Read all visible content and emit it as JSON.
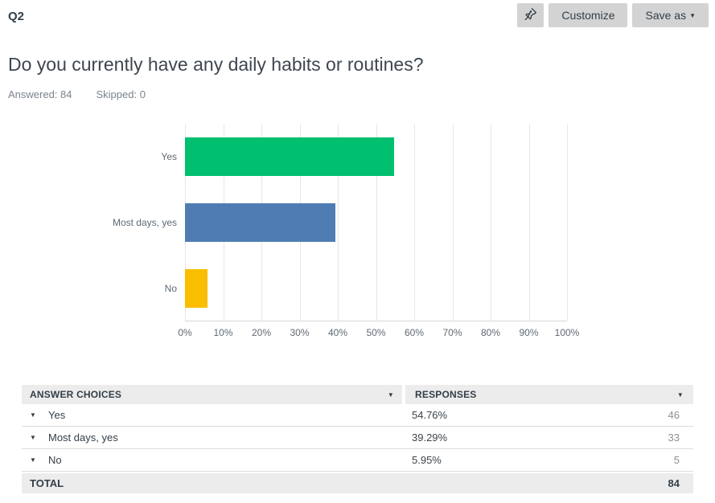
{
  "topbar": {
    "question_number": "Q2",
    "customize_label": "Customize",
    "save_as_label": "Save as",
    "save_as_caret": "▼"
  },
  "question": {
    "title": "Do you currently have any daily habits or routines?",
    "answered_label": "Answered: 84",
    "skipped_label": "Skipped: 0"
  },
  "chart_data": {
    "type": "bar",
    "orientation": "horizontal",
    "title": "",
    "xlabel": "",
    "ylabel": "",
    "categories": [
      "Yes",
      "Most days, yes",
      "No"
    ],
    "values": [
      54.76,
      39.29,
      5.95
    ],
    "colors": [
      "#00BF6F",
      "#4F7DB3",
      "#F9BE00"
    ],
    "x_ticks": [
      "0%",
      "10%",
      "20%",
      "30%",
      "40%",
      "50%",
      "60%",
      "70%",
      "80%",
      "90%",
      "100%"
    ],
    "xlim": [
      0,
      100
    ],
    "grid": true,
    "legend": "none"
  },
  "table": {
    "headers": {
      "answer_choices": "ANSWER CHOICES",
      "responses": "RESPONSES"
    },
    "header_caret": "▼",
    "row_caret": "▼",
    "rows": [
      {
        "label": "Yes",
        "percent": "54.76%",
        "count": "46"
      },
      {
        "label": "Most days, yes",
        "percent": "39.29%",
        "count": "33"
      },
      {
        "label": "No",
        "percent": "5.95%",
        "count": "5"
      }
    ],
    "total_label": "TOTAL",
    "total_count": "84"
  },
  "colors": {
    "button_bg": "#D3D3D3",
    "table_header_bg": "#ECECEC",
    "text_dark": "#333E48",
    "text_gray": "#7A838C"
  }
}
